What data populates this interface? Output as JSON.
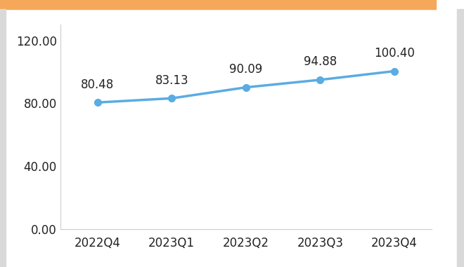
{
  "chart_data": {
    "type": "line",
    "categories": [
      "2022Q4",
      "2023Q1",
      "2023Q2",
      "2023Q3",
      "2023Q4"
    ],
    "values": [
      80.48,
      83.13,
      90.09,
      94.88,
      100.4
    ],
    "value_labels": [
      "80.48",
      "83.13",
      "90.09",
      "94.88",
      "100.40"
    ],
    "color": "#5aace2",
    "marker": "o",
    "line_style": "solid",
    "ylim": [
      0,
      130
    ],
    "yticks": [
      {
        "value": 0,
        "label": "0.00"
      },
      {
        "value": 40,
        "label": "40.00"
      },
      {
        "value": 80,
        "label": "80.00"
      },
      {
        "value": 120,
        "label": "120.00"
      }
    ],
    "grid": false,
    "data_labels": true
  }
}
